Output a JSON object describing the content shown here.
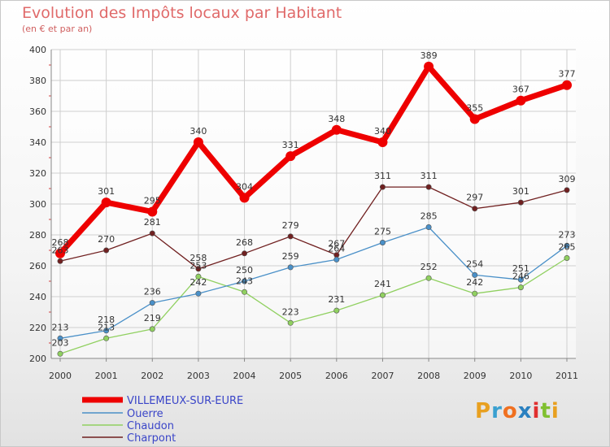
{
  "title": "Evolution des Impôts locaux par Habitant",
  "subtitle": "(en € et par an)",
  "logo": {
    "text": "Proxiti",
    "letter_colors": [
      "#e8a020",
      "#3aa0d0",
      "#f07020",
      "#2a80c0",
      "#e03030",
      "#80c030",
      "#e8a020"
    ]
  },
  "chart_data": {
    "type": "line",
    "x": [
      "2000",
      "2001",
      "2002",
      "2003",
      "2004",
      "2005",
      "2006",
      "2007",
      "2008",
      "2009",
      "2010",
      "2011"
    ],
    "yticks": [
      200,
      220,
      240,
      260,
      280,
      300,
      320,
      340,
      360,
      380,
      400
    ],
    "ylim": [
      200,
      400
    ],
    "grid": true,
    "legend_position": "bottom-left",
    "series": [
      {
        "name": "VILLEMEUX-SUR-EURE",
        "color": "#ee0000",
        "values": [
          268,
          301,
          295,
          340,
          304,
          331,
          348,
          340,
          389,
          355,
          367,
          377
        ],
        "labels": [
          "268",
          "301",
          "295",
          "340",
          "304",
          "331",
          "348",
          "340",
          "389",
          "355",
          "367",
          "377"
        ]
      },
      {
        "name": "Ouerre",
        "color": "#4a90c8",
        "values": [
          213,
          218,
          236,
          242,
          250,
          259,
          264,
          275,
          285,
          254,
          251,
          273
        ],
        "labels": [
          "213",
          "218",
          "236",
          "242",
          "250",
          "259",
          "264",
          "275",
          "285",
          "254",
          "251",
          "273"
        ]
      },
      {
        "name": "Chaudon",
        "color": "#90d060",
        "values": [
          203,
          213,
          219,
          253,
          243,
          223,
          231,
          241,
          252,
          242,
          246,
          265
        ],
        "labels": [
          "203",
          "213",
          "219",
          "253",
          "243",
          "223",
          "231",
          "241",
          "252",
          "242",
          "246",
          "265"
        ]
      },
      {
        "name": "Charpont",
        "color": "#702020",
        "values": [
          263,
          270,
          281,
          258,
          268,
          279,
          267,
          311,
          311,
          297,
          301,
          309
        ],
        "labels": [
          "263",
          "270",
          "281",
          "258",
          "268",
          "279",
          "267",
          "311",
          "311",
          "297",
          "301",
          "309"
        ]
      }
    ]
  }
}
